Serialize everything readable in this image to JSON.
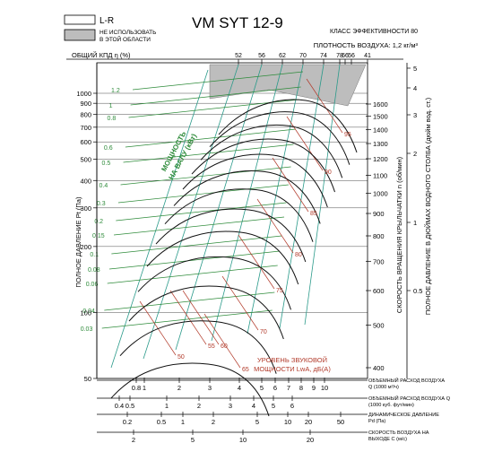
{
  "legend": {
    "lr_label": "L-R",
    "not_use_label": "НЕ ИСПОЛЬЗОВАТЬ\nВ ЭТОЙ ОБЛАСТИ",
    "lr_color": "#ffffff",
    "not_use_color": "#bdbdbd"
  },
  "header": {
    "model": "VM  SYT 12-9",
    "efficiency_class": "КЛАСС ЭФФЕКТИВНОСТИ 80",
    "air_density": "ПЛОТНОСТЬ ВОЗДУХА: 1,2 кг/м³",
    "efficiency_axis_label": "ОБЩИЙ КПД η (%)"
  },
  "colors": {
    "pressure_curves": "#111111",
    "power_lines": "#2e8b3a",
    "noise_lines": "#b23a2a",
    "efficiency_lines": "#2a9a8a",
    "grid": "#000000",
    "shade": "#b8b8b8"
  },
  "chart_data": {
    "type": "line",
    "title": "VM  SYT 12-9",
    "efficiency_ticks": [
      "52",
      "56",
      "62",
      "70",
      "74",
      "78",
      "66",
      "56",
      "41"
    ],
    "efficiency_marks_on_curve": [
      "62",
      "70",
      "74",
      "78"
    ],
    "y_left": {
      "label": "ПОЛНОЕ ДАВЛЕНИЕ Pt (Па)",
      "scale": "log",
      "ticks": [
        50,
        100,
        200,
        300,
        400,
        500,
        600,
        700,
        800,
        900,
        1000
      ],
      "range": [
        50,
        1000
      ]
    },
    "y_speed": {
      "label": "СКОРОСТЬ ВРАЩЕНИЯ КРЫЛЬЧАТКИ  n (об/мин)",
      "ticks": [
        400,
        500,
        600,
        700,
        800,
        900,
        1000,
        1100,
        1200,
        1300,
        1400,
        1500,
        1600
      ]
    },
    "y_right": {
      "label": "ПОЛНОЕ ДАВЛЕНИЕ В ДЮЙМАХ ВОДНОГО СТОЛБА (дюйм вод. ст.)",
      "ticks": [
        "0.5",
        "1",
        "2",
        "3",
        "4",
        "5"
      ]
    },
    "power_lines": {
      "label": "МОЩНОСТЬ НА ВАЛУ (кВт)",
      "values": [
        "1.2",
        "1",
        "0.8",
        "0.6",
        "0.5",
        "0.4",
        "0.3",
        "0.2",
        "0.15",
        "0.1",
        "0.08",
        "0.06",
        "0.04",
        "0.03"
      ]
    },
    "noise_lines": {
      "label": "УРОВЕНЬ ЗВУКОВОЙ МОЩНОСТИ LwA, дБ(А)",
      "values": [
        "95",
        "90",
        "85",
        "80",
        "75",
        "70",
        "65",
        "60",
        "55",
        "50"
      ]
    },
    "bottom_scales": [
      {
        "label": "ОБЪЕМНЫЙ РАСХОД ВОЗДУХА Q (1000 м³/ч)",
        "ticks": [
          "0.8",
          "1",
          "2",
          "3",
          "4",
          "5",
          "6",
          "7",
          "8",
          "9",
          "10"
        ]
      },
      {
        "label": "ОБЪЕМНЫЙ РАСХОД ВОЗДУХА Q (1000 куб. фут/мин)",
        "ticks": [
          "0.4",
          "0.5",
          "1",
          "2",
          "3",
          "4",
          "5",
          "6"
        ]
      },
      {
        "label": "ДИНАМИЧЕСКОЕ ДАВЛЕНИЕ Pd (Па)",
        "ticks": [
          "0.2",
          "0.5",
          "1",
          "2",
          "5",
          "10",
          "20",
          "50"
        ]
      },
      {
        "label": "СКОРОСТЬ ВОЗДУХА НА ВЫХОДЕ C (м/с)",
        "ticks": [
          "2",
          "5",
          "10",
          "20"
        ]
      }
    ]
  }
}
